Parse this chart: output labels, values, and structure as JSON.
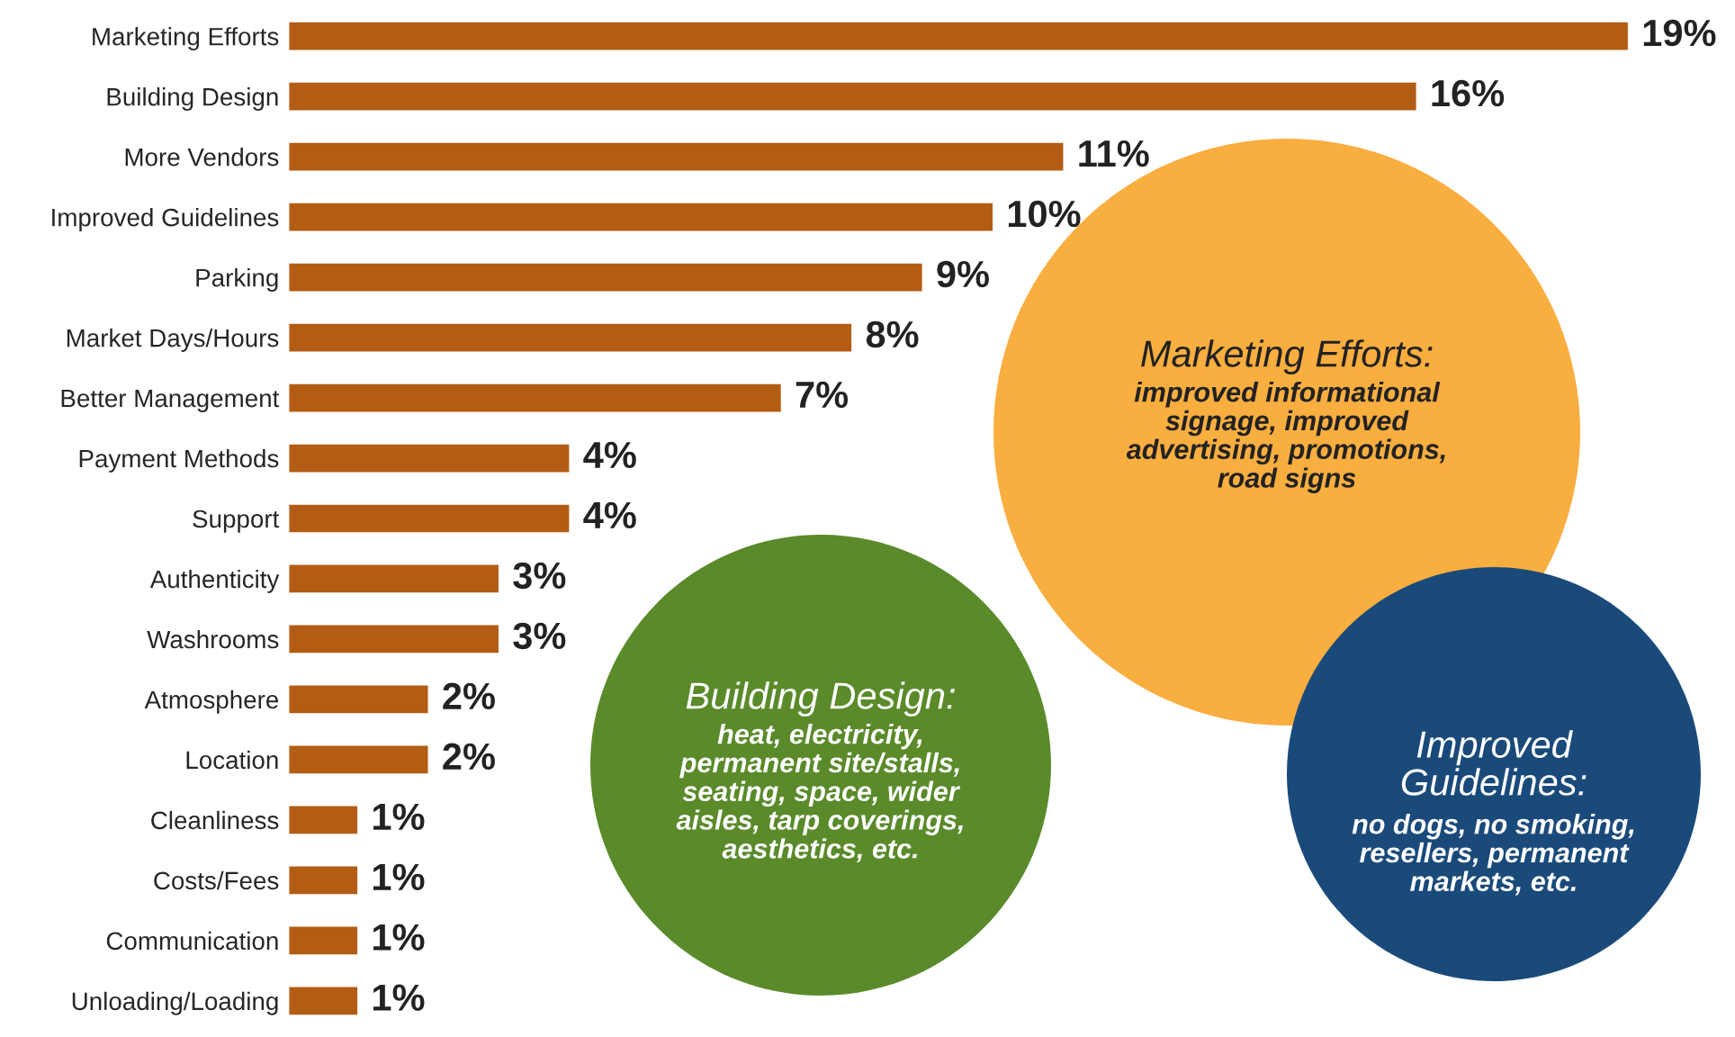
{
  "chart_data": {
    "type": "bar",
    "orientation": "horizontal",
    "categories": [
      "Marketing Efforts",
      "Building Design",
      "More Vendors",
      "Improved Guidelines",
      "Parking",
      "Market Days/Hours",
      "Better Management",
      "Payment Methods",
      "Support",
      "Authenticity",
      "Washrooms",
      "Atmosphere",
      "Location",
      "Cleanliness",
      "Costs/Fees",
      "Communication",
      "Unloading/Loading"
    ],
    "values": [
      19,
      16,
      11,
      10,
      9,
      8,
      7,
      4,
      4,
      3,
      3,
      2,
      2,
      1,
      1,
      1,
      1
    ],
    "value_labels": [
      "19%",
      "16%",
      "11%",
      "10%",
      "9%",
      "8%",
      "7%",
      "4%",
      "4%",
      "3%",
      "3%",
      "2%",
      "2%",
      "1%",
      "1%",
      "1%",
      "1%"
    ],
    "color": "#b35c14",
    "tick_labels": "y",
    "grid": false,
    "legend": false,
    "annotations": [
      "Marketing Efforts:",
      "improved informational\nsignage, improved\nadvertising, promotions,\nroad signs",
      "Building Design:",
      "heat, electricity,\npermanent site/stalls,\nseating, space, wider\naisles, tarp coverings,\naesthetics, etc.",
      "Improved\nGuidelines:",
      "no dogs, no smoking,\nresellers, permanent\nmarkets, etc."
    ]
  }
}
